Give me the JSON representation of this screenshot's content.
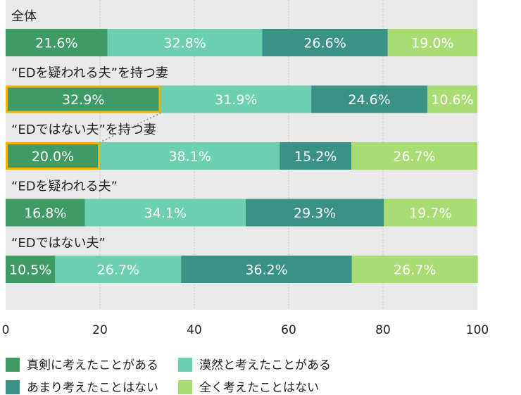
{
  "chart_data": {
    "type": "bar",
    "orientation": "horizontal",
    "stacked": true,
    "categories": [
      "全体",
      "“EDを疑われる夫”を持つ妻",
      "“EDではない夫”を持つ妻",
      "“EDを疑われる夫”",
      "“EDではない夫”"
    ],
    "series": [
      {
        "name": "真剣に考えたことがある",
        "color": "#3e9b66",
        "values": [
          21.6,
          32.9,
          20.0,
          16.8,
          10.5
        ]
      },
      {
        "name": "漠然と考えたことがある",
        "color": "#6ccfb0",
        "values": [
          32.8,
          31.9,
          38.1,
          34.1,
          26.7
        ]
      },
      {
        "name": "あまり考えたことはない",
        "color": "#3a9286",
        "values": [
          26.6,
          24.6,
          15.2,
          29.3,
          36.2
        ]
      },
      {
        "name": "全く考えたことはない",
        "color": "#a9dc73",
        "values": [
          19.0,
          10.6,
          26.7,
          19.7,
          26.7
        ]
      }
    ],
    "xlim": [
      0,
      100
    ],
    "xticks": [
      0,
      20,
      40,
      60,
      80,
      100
    ],
    "grid": true,
    "legend": "bottom",
    "highlight_color": "#f0b400",
    "highlights": [
      {
        "category": 1,
        "series": 0
      },
      {
        "category": 2,
        "series": 0
      }
    ]
  }
}
